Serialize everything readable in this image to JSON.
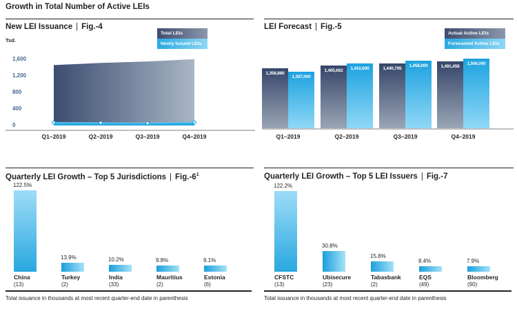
{
  "page": {
    "title": "Growth in Total Number of Active LEIs",
    "separator": "|"
  },
  "colors": {
    "text_dark": "#231f20",
    "axis_label_blue": "#46648f",
    "accent_blue": "#29a9e0",
    "accent_blue_light": "#9edcf7",
    "slate_dark": "#3c4d70",
    "slate_light": "#a9b6c5",
    "axis_line_gray": "#bcbec0"
  },
  "chart_data": [
    {
      "id": "fig4",
      "type": "area",
      "title": "New LEI Issuance",
      "fig": "Fig.-4",
      "ylabel": "Tsd.",
      "categories": [
        "Q1–2019",
        "Q2–2019",
        "Q3–2019",
        "Q4–2019"
      ],
      "series": [
        {
          "name": "Total LEIs",
          "values": [
            1358.88,
            1405.662,
            1440.795,
            1491.458
          ]
        },
        {
          "name": "Newly Issued LEIs",
          "values": [
            66,
            60,
            53,
            70
          ]
        }
      ],
      "ylim": [
        0,
        1600
      ],
      "yticks": [
        0,
        400,
        800,
        1200,
        1600
      ],
      "ytick_labels": [
        "0",
        "400",
        "800",
        "1,200",
        "1,600"
      ],
      "grid": false,
      "legend_position": "top-right"
    },
    {
      "id": "fig5",
      "type": "bar",
      "title": "LEI Forecast",
      "fig": "Fig.-5",
      "categories": [
        "Q1–2019",
        "Q2–2019",
        "Q3–2019",
        "Q4–2019"
      ],
      "series": [
        {
          "name": "Actual Active LEIs",
          "values": [
            1358880,
            1405662,
            1440795,
            1491458
          ],
          "labels": [
            "1,358,880",
            "1,405,662",
            "1,440,795",
            "1,491,458"
          ]
        },
        {
          "name": "Forecasted Active LEIs",
          "values": [
            1357000,
            1410000,
            1458000,
            1506000
          ],
          "labels": [
            "1,357,000",
            "1,410,000",
            "1,458,000",
            "1,506,000"
          ]
        }
      ],
      "grid": false,
      "legend_position": "top-right"
    },
    {
      "id": "fig6",
      "type": "bar",
      "title": "Quarterly LEI Growth – Top 5 Jurisdictions",
      "fig": "Fig.-6",
      "fig_sup": "1",
      "categories": [
        "China",
        "Turkey",
        "India",
        "Mauritius",
        "Estonia"
      ],
      "counts": [
        "(13)",
        "(2)",
        "(33)",
        "(2)",
        "(6)"
      ],
      "values": [
        122.5,
        13.9,
        10.2,
        9.8,
        9.1
      ],
      "labels": [
        "122.5%",
        "13.9%",
        "10.2%",
        "9.8%",
        "9.1%"
      ],
      "footnote": "Total issuance in thousands at most recent quarter-end date in parenthesis"
    },
    {
      "id": "fig7",
      "type": "bar",
      "title": "Quarterly LEI Growth – Top 5 LEI Issuers",
      "fig": "Fig.-7",
      "categories": [
        "CFSTC",
        "Ubisecure",
        "Tabasbank",
        "EQS",
        "Bloomberg"
      ],
      "counts": [
        "(13)",
        "(23)",
        "(2)",
        "(49)",
        "(90)"
      ],
      "values": [
        122.2,
        30.8,
        15.8,
        8.4,
        7.9
      ],
      "labels": [
        "122.2%",
        "30.8%",
        "15.8%",
        "8.4%",
        "7.9%"
      ],
      "footnote": "Total issuance in thousands at most recent quarter-end date in parenthesis"
    }
  ]
}
